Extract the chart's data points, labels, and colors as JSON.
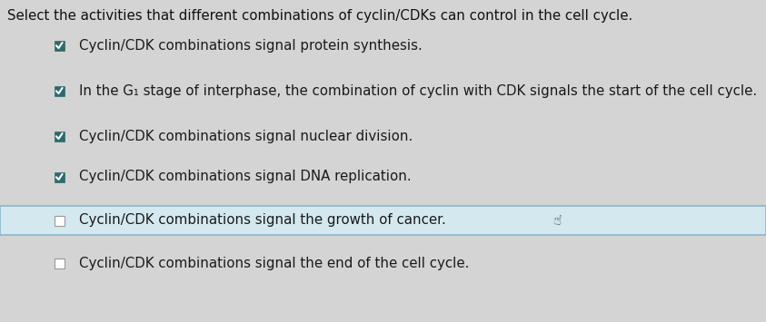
{
  "title": "Select the activities that different combinations of cyclin/CDKs can control in the cell cycle.",
  "items": [
    {
      "text": "Cyclin/CDK combinations signal protein synthesis.",
      "checked": true,
      "highlighted": false
    },
    {
      "text": "In the G₁ stage of interphase, the combination of cyclin with CDK signals the start of the cell cycle.",
      "checked": true,
      "highlighted": false
    },
    {
      "text": "Cyclin/CDK combinations signal nuclear division.",
      "checked": true,
      "highlighted": false
    },
    {
      "text": "Cyclin/CDK combinations signal DNA replication.",
      "checked": true,
      "highlighted": false
    },
    {
      "text": "Cyclin/CDK combinations signal the growth of cancer.",
      "checked": false,
      "highlighted": true
    },
    {
      "text": "Cyclin/CDK combinations signal the end of the cell cycle.",
      "checked": false,
      "highlighted": false
    }
  ],
  "background_color": "#d4d4d4",
  "title_fontsize": 10.8,
  "item_fontsize": 10.8,
  "highlight_color": "#d4e8f0",
  "highlight_border_color": "#8ab8cc",
  "text_color": "#1a1a1a",
  "title_color": "#111111",
  "checked_box_color": "#2d6b6b",
  "unchecked_box_color": "#ffffff"
}
